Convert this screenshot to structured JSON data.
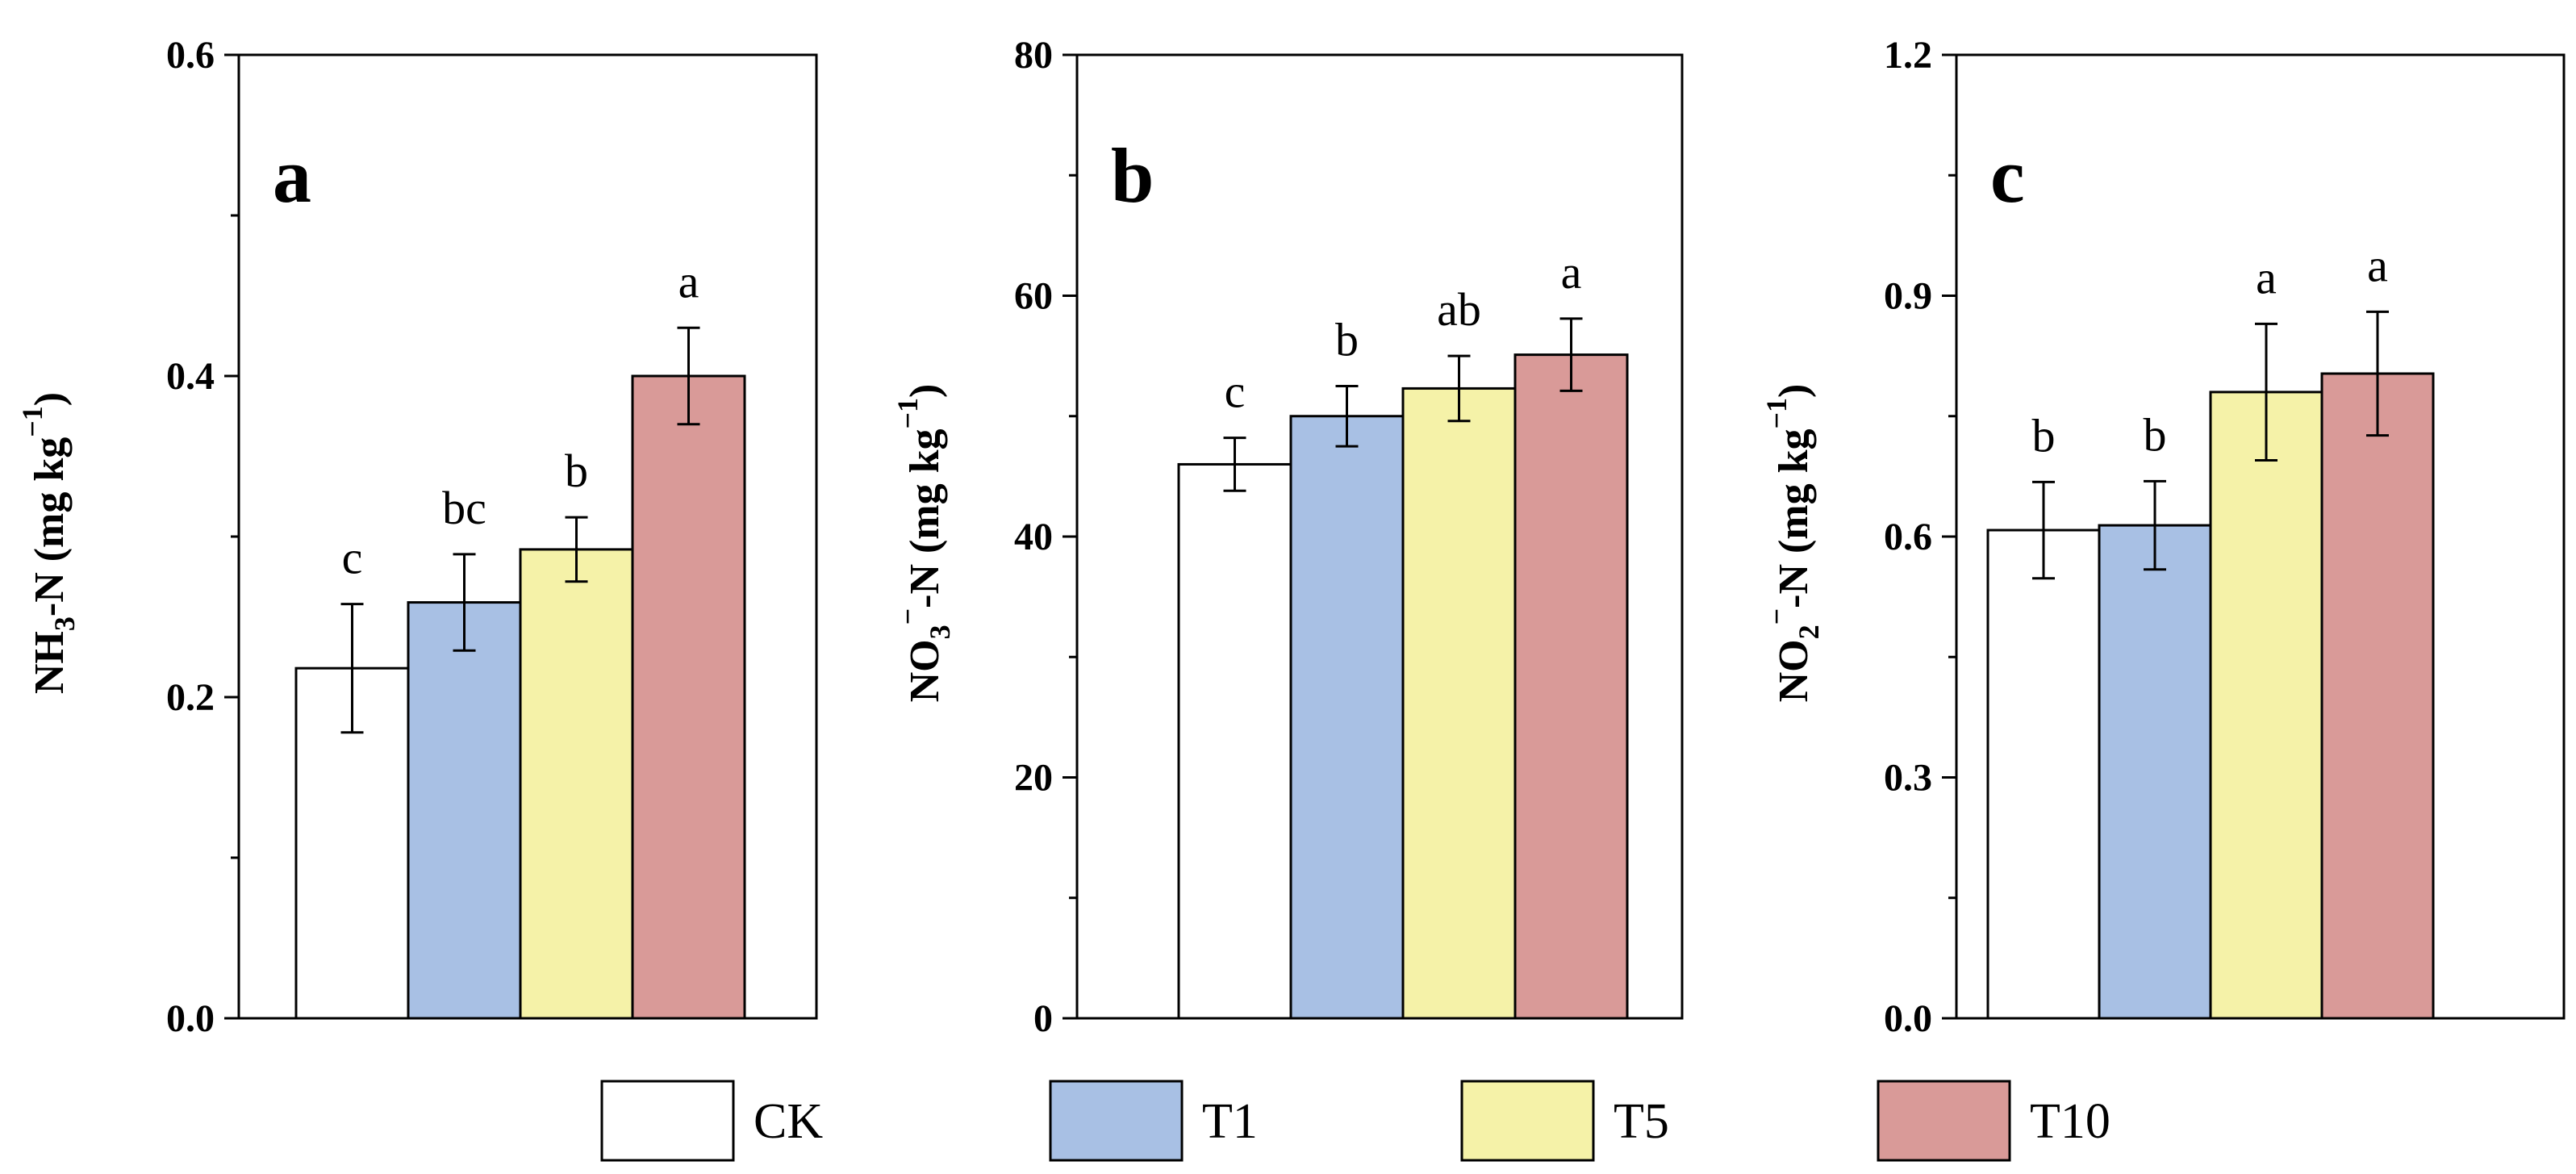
{
  "chart_data": [
    {
      "type": "bar",
      "panel_label": "a",
      "ylabel": {
        "species": "NH",
        "sub": "3",
        "sup": "",
        "suffix": "-N (mg kg",
        "unit_sup": "−1",
        "close": ")"
      },
      "ylim": [
        0,
        0.6
      ],
      "ytick_labels": [
        "0.0",
        "0.2",
        "0.4",
        "0.6"
      ],
      "yticks": [
        0,
        0.2,
        0.4,
        0.6
      ],
      "minor_yticks": [
        0.1,
        0.3,
        0.5
      ],
      "categories": [
        "CK",
        "T1",
        "T5",
        "T10"
      ],
      "values": [
        0.218,
        0.259,
        0.292,
        0.4
      ],
      "errors": [
        0.04,
        0.03,
        0.02,
        0.03
      ],
      "significance": [
        "c",
        "bc",
        "b",
        "a"
      ]
    },
    {
      "type": "bar",
      "panel_label": "b",
      "ylabel": {
        "species": "NO",
        "sub": "3",
        "sup": "−",
        "suffix": "-N (mg kg",
        "unit_sup": "−1",
        "close": ")"
      },
      "ylim": [
        0,
        80
      ],
      "ytick_labels": [
        "0",
        "20",
        "40",
        "60",
        "80"
      ],
      "yticks": [
        0,
        20,
        40,
        60,
        80
      ],
      "minor_yticks": [
        10,
        30,
        50,
        70
      ],
      "categories": [
        "CK",
        "T1",
        "T5",
        "T10"
      ],
      "values": [
        46.0,
        50.0,
        52.3,
        55.1
      ],
      "errors": [
        2.2,
        2.5,
        2.7,
        3.0
      ],
      "significance": [
        "c",
        "b",
        "ab",
        "a"
      ]
    },
    {
      "type": "bar",
      "panel_label": "c",
      "ylabel": {
        "species": "NO",
        "sub": "2",
        "sup": "−",
        "suffix": "-N (mg kg",
        "unit_sup": "−1",
        "close": ")"
      },
      "ylim": [
        0,
        1.2
      ],
      "ytick_labels": [
        "0.0",
        "0.3",
        "0.6",
        "0.9",
        "1.2"
      ],
      "yticks": [
        0,
        0.3,
        0.6,
        0.9,
        1.2
      ],
      "minor_yticks": [
        0.15,
        0.45,
        0.75,
        1.05
      ],
      "categories": [
        "CK",
        "T1",
        "T5",
        "T10"
      ],
      "values": [
        0.608,
        0.614,
        0.78,
        0.803
      ],
      "errors": [
        0.06,
        0.055,
        0.085,
        0.077
      ],
      "significance": [
        "b",
        "b",
        "a",
        "a"
      ]
    }
  ],
  "legend": {
    "placement": "bottom",
    "items": [
      {
        "label": "CK",
        "color": "#ffffff"
      },
      {
        "label": "T1",
        "color": "#a8c0e4"
      },
      {
        "label": "T5",
        "color": "#f5f2a8"
      },
      {
        "label": "T10",
        "color": "#d99a98"
      }
    ]
  }
}
